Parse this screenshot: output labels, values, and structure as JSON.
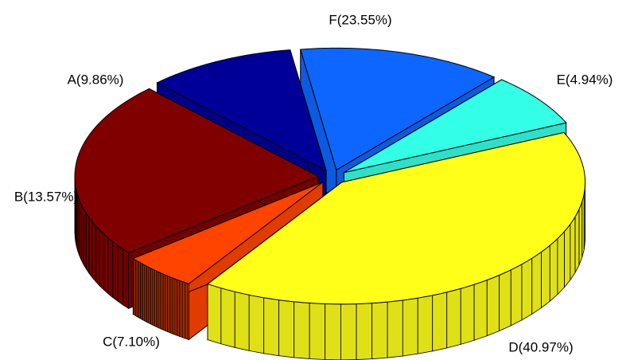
{
  "chart_data": {
    "type": "pie",
    "title": "",
    "slices": [
      {
        "label": "A",
        "value": 9.86,
        "text": "A(9.86%)",
        "color": "#000099"
      },
      {
        "label": "B",
        "value": 13.57,
        "text": "B(13.57%)",
        "color": "#0d66ff"
      },
      {
        "label": "C",
        "value": 7.1,
        "text": "C(7.10%)",
        "color": "#33ffe6"
      },
      {
        "label": "D",
        "value": 40.97,
        "text": "D(40.97%)",
        "color": "#ffff1a"
      },
      {
        "label": "E",
        "value": 4.94,
        "text": "E(4.94%)",
        "color": "#ff4400"
      },
      {
        "label": "F",
        "value": 23.55,
        "text": "F(23.55%)",
        "color": "#800000"
      }
    ],
    "style": "3d-exploded"
  }
}
